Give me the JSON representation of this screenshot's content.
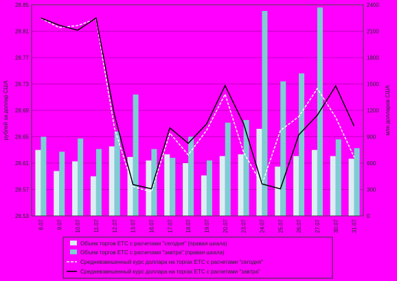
{
  "chart_data": {
    "type": "bar",
    "title": "",
    "categories": [
      "6.07",
      "9.07",
      "10.07",
      "11.07",
      "12.07",
      "13.07",
      "16.07",
      "17.07",
      "18.07",
      "19.07",
      "20.07",
      "23.07",
      "24.07",
      "25.07",
      "26.07",
      "27.07",
      "30.07",
      "31.07"
    ],
    "left_axis": {
      "label": "рублей за доллар США",
      "min": 28.53,
      "max": 28.85,
      "ticks": [
        "28.53",
        "28.57",
        "28.61",
        "28.65",
        "28.69",
        "28.73",
        "28.77",
        "28.81",
        "28.85"
      ]
    },
    "right_axis": {
      "label": "млн долларов США",
      "min": 0,
      "max": 2400,
      "ticks": [
        "0",
        "300",
        "600",
        "900",
        "1200",
        "1500",
        "1800",
        "2100",
        "2400"
      ]
    },
    "series": [
      {
        "name": "Объем торгов ЕТС с расчетами \"сегодня\" (правая шкала)",
        "kind": "bar",
        "axis": "right",
        "color": "#dbeff3",
        "values": [
          750,
          510,
          620,
          450,
          790,
          670,
          630,
          700,
          600,
          460,
          680,
          700,
          990,
          560,
          680,
          750,
          680,
          650
        ]
      },
      {
        "name": "Объем торгов ЕТС с расчетами \"завтра\" (правая шкала)",
        "kind": "bar",
        "axis": "right",
        "color": "#7dcdd3",
        "values": [
          900,
          730,
          880,
          760,
          960,
          1380,
          760,
          660,
          900,
          630,
          1060,
          1090,
          2330,
          1530,
          1620,
          2370,
          870,
          770
        ]
      },
      {
        "name": "Средневзвешенный курс доллара на торгах ЕТС с расчетами \"сегодня\"",
        "kind": "line",
        "axis": "left",
        "color": "#ffffff",
        "dash": "4,2",
        "values": [
          28.8295,
          28.8155,
          28.8185,
          28.8285,
          28.6625,
          28.5745,
          28.5665,
          28.6555,
          28.6225,
          28.66,
          28.7145,
          28.6265,
          28.5775,
          28.6595,
          28.6805,
          28.723,
          28.6795,
          28.619
        ]
      },
      {
        "name": "Средневзвешенный курс доллара на торгах ЕТС с расчетами \"завтра\"",
        "kind": "line",
        "axis": "left",
        "color": "#000000",
        "dash": "",
        "values": [
          28.83,
          28.819,
          28.8115,
          28.83,
          28.6825,
          28.5775,
          28.571,
          28.6635,
          28.64,
          28.6695,
          28.7275,
          28.67,
          28.5785,
          28.571,
          28.653,
          28.6825,
          28.727,
          28.666
        ]
      }
    ]
  }
}
